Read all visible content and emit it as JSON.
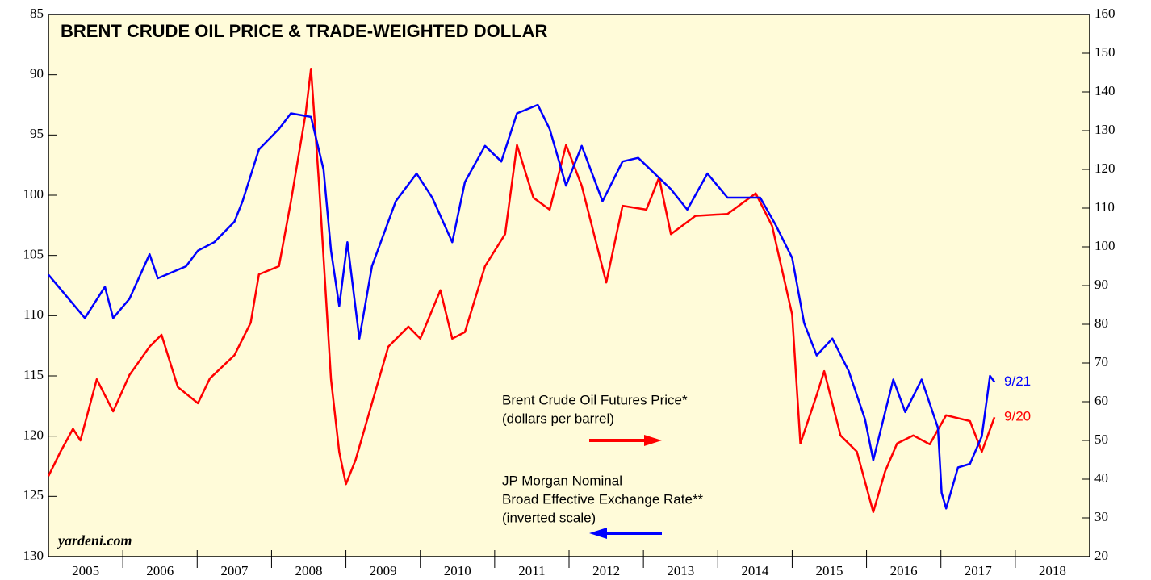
{
  "chart_data": {
    "type": "line",
    "title": "BRENT CRUDE OIL PRICE & TRADE-WEIGHTED DOLLAR",
    "source": "yardeni.com",
    "categories": [
      "2005",
      "2006",
      "2007",
      "2008",
      "2009",
      "2010",
      "2011",
      "2012",
      "2013",
      "2014",
      "2015",
      "2016",
      "2017",
      "2018"
    ],
    "xlim": [
      2005,
      2019
    ],
    "ylim": [
      130,
      85
    ],
    "yticks": [
      85,
      90,
      95,
      100,
      105,
      110,
      115,
      120,
      125,
      130
    ],
    "y2lim": [
      20,
      160
    ],
    "y2ticks": [
      20,
      30,
      40,
      50,
      60,
      70,
      80,
      90,
      100,
      110,
      120,
      130,
      140,
      150,
      160
    ],
    "series": [
      {
        "name": "Brent Crude Oil Futures Price*",
        "name_note": "(dollars per barrel)",
        "color": "#ff0000",
        "axis": "y2",
        "end_label": "9/20",
        "x": [
          2005.0,
          2005.16,
          2005.33,
          2005.43,
          2005.65,
          2005.87,
          2006.09,
          2006.36,
          2006.52,
          2006.74,
          2007.01,
          2007.17,
          2007.5,
          2007.72,
          2007.83,
          2008.1,
          2008.26,
          2008.46,
          2008.53,
          2008.64,
          2008.8,
          2008.91,
          2009.0,
          2009.13,
          2009.35,
          2009.57,
          2009.84,
          2010.0,
          2010.27,
          2010.43,
          2010.6,
          2010.87,
          2011.14,
          2011.3,
          2011.52,
          2011.74,
          2011.96,
          2012.17,
          2012.5,
          2012.72,
          2013.04,
          2013.21,
          2013.37,
          2013.7,
          2014.13,
          2014.51,
          2014.73,
          2015.0,
          2015.11,
          2015.33,
          2015.43,
          2015.65,
          2015.87,
          2016.09,
          2016.25,
          2016.41,
          2016.63,
          2016.85,
          2017.07,
          2017.39,
          2017.55,
          2017.72
        ],
        "values": [
          40.8,
          47.0,
          53.0,
          50.0,
          65.8,
          57.5,
          66.9,
          74.2,
          77.3,
          63.8,
          59.6,
          66.0,
          72.0,
          80.4,
          92.9,
          95.0,
          111.7,
          134.6,
          146.0,
          115.8,
          65.8,
          47.0,
          38.7,
          45.0,
          59.6,
          74.2,
          79.4,
          76.3,
          88.8,
          76.3,
          78.0,
          95.0,
          103.3,
          126.3,
          112.7,
          109.6,
          126.3,
          115.8,
          90.8,
          110.6,
          109.6,
          117.9,
          103.3,
          108.0,
          108.5,
          113.8,
          105.4,
          82.5,
          49.2,
          61.7,
          67.9,
          51.3,
          47.1,
          31.5,
          42.0,
          49.2,
          51.3,
          49.0,
          56.5,
          55.0,
          47.1,
          56.0
        ]
      },
      {
        "name": "JP Morgan Nominal",
        "name_note": "Broad Effective Exchange Rate**",
        "name_note2": "(inverted scale)",
        "color": "#0000ff",
        "axis": "y",
        "end_label": "9/21",
        "x": [
          2005.0,
          2005.49,
          2005.76,
          2005.87,
          2006.09,
          2006.36,
          2006.47,
          2006.85,
          2007.01,
          2007.23,
          2007.5,
          2007.61,
          2007.83,
          2008.1,
          2008.26,
          2008.53,
          2008.7,
          2008.8,
          2008.91,
          2009.02,
          2009.18,
          2009.35,
          2009.67,
          2009.95,
          2010.16,
          2010.43,
          2010.6,
          2010.87,
          2011.09,
          2011.3,
          2011.58,
          2011.74,
          2011.96,
          2012.17,
          2012.45,
          2012.72,
          2012.93,
          2013.15,
          2013.37,
          2013.59,
          2013.86,
          2014.13,
          2014.57,
          2014.78,
          2015.0,
          2015.16,
          2015.33,
          2015.54,
          2015.76,
          2015.98,
          2016.09,
          2016.25,
          2016.36,
          2016.52,
          2016.74,
          2016.96,
          2017.01,
          2017.07,
          2017.23,
          2017.39,
          2017.55,
          2017.66,
          2017.72
        ],
        "values": [
          106.6,
          110.2,
          107.6,
          110.2,
          108.6,
          104.9,
          106.9,
          105.9,
          104.6,
          103.9,
          102.2,
          100.5,
          96.2,
          94.5,
          93.2,
          93.5,
          97.9,
          104.6,
          109.2,
          103.9,
          111.9,
          105.9,
          100.5,
          98.2,
          100.2,
          103.9,
          98.9,
          95.9,
          97.2,
          93.2,
          92.5,
          94.5,
          99.2,
          95.9,
          100.5,
          97.2,
          96.9,
          98.2,
          99.5,
          101.2,
          98.2,
          100.2,
          100.2,
          102.5,
          105.2,
          110.6,
          113.3,
          111.9,
          114.6,
          118.6,
          122.0,
          118.0,
          115.3,
          118.0,
          115.3,
          119.3,
          124.7,
          126.0,
          122.6,
          122.3,
          120.0,
          115.0,
          115.5
        ]
      }
    ]
  }
}
